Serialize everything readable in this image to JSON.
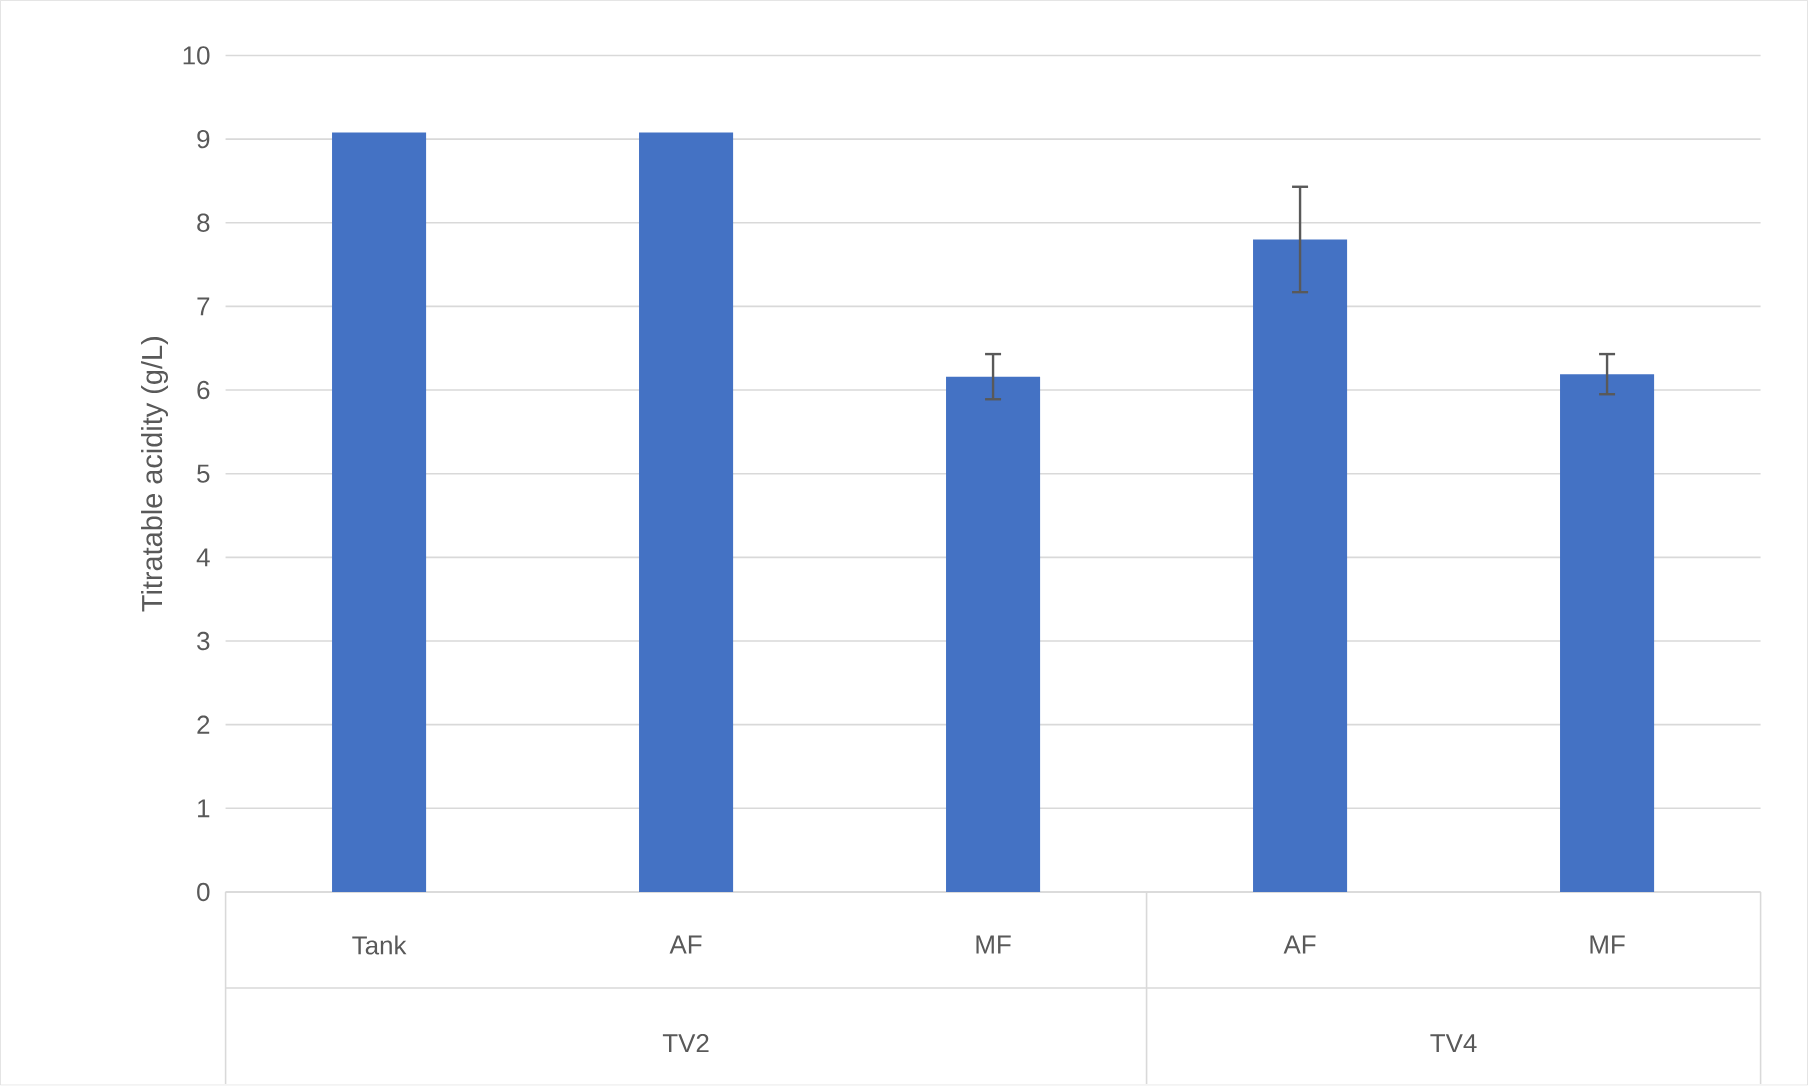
{
  "chart_data": {
    "type": "bar",
    "ylabel": "Titratable acidity (g/L)",
    "categories": [
      "Tank",
      "AF",
      "MF",
      "AF",
      "MF"
    ],
    "values": [
      9.08,
      9.08,
      6.16,
      7.8,
      6.19
    ],
    "errors": [
      null,
      null,
      0.27,
      0.63,
      0.24
    ],
    "color": "#4472c4",
    "ylim": [
      0,
      10
    ],
    "yticks": [
      0,
      1,
      2,
      3,
      4,
      5,
      6,
      7,
      8,
      9,
      10
    ],
    "grid": "y",
    "annotations": [
      "TV2",
      "TV4"
    ]
  }
}
